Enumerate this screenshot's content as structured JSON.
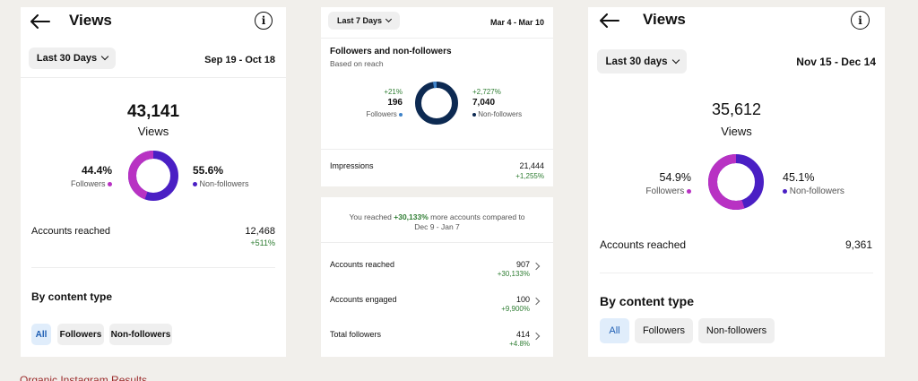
{
  "panel1": {
    "title": "Views",
    "range_label": "Last 30 Days",
    "date_range": "Sep 19 - Oct 18",
    "total": "43,141",
    "total_label": "Views",
    "followers_pct": "44.4%",
    "followers_label": "Followers",
    "nonfollowers_pct": "55.6%",
    "nonfollowers_label": "Non-followers",
    "followers_share": 0.444,
    "accounts_label": "Accounts reached",
    "accounts_value": "12,468",
    "accounts_change": "+511%",
    "section_title": "By content type",
    "filters": [
      "All",
      "Followers",
      "Non-followers"
    ]
  },
  "panel2": {
    "range_label": "Last 7 Days",
    "date_range": "Mar 4 - Mar 10",
    "title": "Followers and non-followers",
    "subtitle": "Based on reach",
    "followers_change": "+21%",
    "followers_value": "196",
    "followers_label": "Followers",
    "nonfollowers_change": "+2,727%",
    "nonfollowers_value": "7,040",
    "nonfollowers_label": "Non-followers",
    "followers_share": 0.027,
    "impressions_label": "Impressions",
    "impressions_value": "21,444",
    "impressions_change": "+1,255%"
  },
  "panel3": {
    "reach_prefix": "You reached",
    "reach_pct": "+30,133%",
    "reach_suffix": "more accounts compared to",
    "reach_period": "Dec 9 - Jan 7",
    "rows": [
      {
        "label": "Accounts reached",
        "value": "907",
        "change": "+30,133%"
      },
      {
        "label": "Accounts engaged",
        "value": "100",
        "change": "+9,900%"
      },
      {
        "label": "Total followers",
        "value": "414",
        "change": "+4.8%"
      }
    ]
  },
  "panel4": {
    "title": "Views",
    "range_label": "Last 30 days",
    "date_range": "Nov 15 - Dec 14",
    "total": "35,612",
    "total_label": "Views",
    "followers_pct": "54.9%",
    "followers_label": "Followers",
    "nonfollowers_pct": "45.1%",
    "nonfollowers_label": "Non-followers",
    "followers_share": 0.549,
    "accounts_label": "Accounts reached",
    "accounts_value": "9,361",
    "section_title": "By content type",
    "filters": [
      "All",
      "Followers",
      "Non-followers"
    ]
  },
  "caption": "Organic Instagram Results",
  "colors": {
    "followers": "#b832c3",
    "nonfollowers": "#4a1fc4",
    "followers_small": "#3f83c9",
    "nonfollowers_small": "#0d2a52",
    "green": "#2e7d32"
  }
}
